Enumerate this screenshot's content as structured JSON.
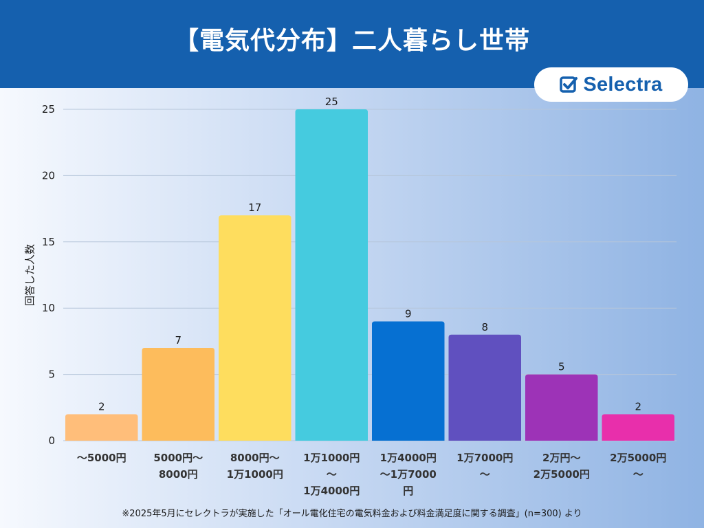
{
  "title": "【電気代分布】二人暮らし世帯",
  "logo": {
    "text": "Selectra",
    "icon": "check-box-icon",
    "color": "#1560ae"
  },
  "footnote": "※2025年5月にセレクトラが実施した「オール電化住宅の電気料金および料金満足度に関する調査」(n=300) より",
  "chart_data": {
    "type": "bar",
    "title": "【電気代分布】二人暮らし世帯",
    "xlabel": "",
    "ylabel": "回答した人数",
    "ylim": [
      0,
      25
    ],
    "yticks": [
      0,
      5,
      10,
      15,
      20,
      25
    ],
    "grid": true,
    "categories": [
      "〜5000円",
      "5000円〜\n8000円",
      "8000円〜\n1万1000円",
      "1万1000円\n〜\n1万4000円",
      "1万4000円\n〜1万7000\n円",
      "1万7000円\n〜",
      "2万円〜\n2万5000円",
      "2万5000円\n〜"
    ],
    "values": [
      2,
      7,
      17,
      25,
      9,
      8,
      5,
      2
    ],
    "colors": [
      "#ffbe7a",
      "#fdbc5c",
      "#fedd5e",
      "#45cbdf",
      "#0670d2",
      "#6050bf",
      "#9d33b7",
      "#e82fab"
    ]
  }
}
